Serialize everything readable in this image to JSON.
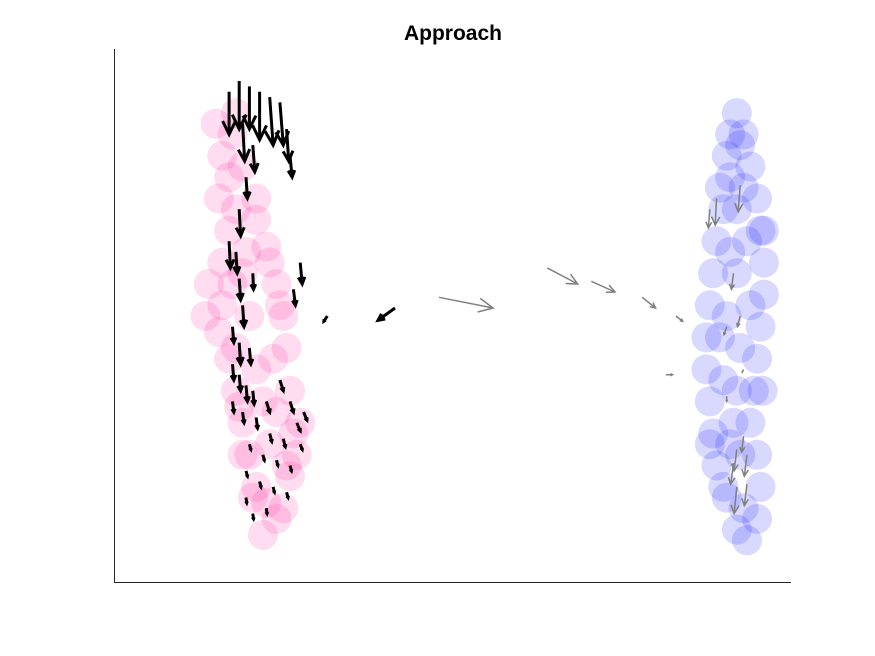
{
  "chart_data": {
    "type": "scatter",
    "title": "Approach",
    "xlabel": "",
    "ylabel": "",
    "xlim": [
      0,
      100
    ],
    "ylim": [
      0,
      100
    ],
    "xticks": [],
    "yticks": [],
    "grid": false,
    "legend": "none",
    "colors": {
      "pink": "#ff1493",
      "blue": "#0000ff",
      "black_arrow": "#000000",
      "gray_arrow": "#808080",
      "axis": "#262626"
    },
    "series": [
      {
        "name": "pink-cluster",
        "kind": "points",
        "color": "#ff1493",
        "opacity": 0.15,
        "points": [
          [
            15.0,
            86.0
          ],
          [
            16.0,
            80.0
          ],
          [
            15.5,
            72.0
          ],
          [
            17.0,
            66.0
          ],
          [
            16.0,
            60.0
          ],
          [
            16.0,
            52.0
          ],
          [
            15.5,
            47.0
          ],
          [
            17.0,
            42.0
          ],
          [
            18.0,
            36.0
          ],
          [
            19.0,
            30.0
          ],
          [
            20.0,
            24.0
          ],
          [
            21.0,
            18.0
          ],
          [
            22.5,
            15.0
          ],
          [
            24.0,
            12.0
          ],
          [
            22.0,
            9.0
          ],
          [
            20.5,
            16.0
          ],
          [
            19.0,
            24.0
          ],
          [
            18.5,
            33.0
          ],
          [
            18.0,
            44.0
          ],
          [
            17.5,
            56.0
          ],
          [
            19.5,
            62.0
          ],
          [
            21.0,
            68.0
          ],
          [
            22.5,
            63.0
          ],
          [
            24.0,
            56.0
          ],
          [
            25.0,
            50.0
          ],
          [
            25.5,
            44.0
          ],
          [
            26.0,
            36.0
          ],
          [
            26.5,
            28.0
          ],
          [
            26.0,
            20.0
          ],
          [
            25.0,
            14.0
          ],
          [
            23.0,
            26.0
          ],
          [
            22.0,
            34.0
          ],
          [
            21.0,
            40.0
          ],
          [
            20.0,
            50.0
          ],
          [
            19.0,
            58.0
          ],
          [
            18.0,
            70.0
          ],
          [
            17.0,
            76.0
          ],
          [
            19.0,
            78.0
          ],
          [
            21.0,
            72.0
          ],
          [
            23.0,
            60.0
          ],
          [
            24.5,
            52.0
          ],
          [
            23.5,
            42.0
          ],
          [
            24.0,
            32.0
          ],
          [
            25.5,
            22.0
          ],
          [
            27.0,
            24.0
          ],
          [
            27.5,
            30.0
          ],
          [
            14.0,
            56.0
          ],
          [
            13.5,
            50.0
          ],
          [
            17.5,
            84.0
          ],
          [
            18.0,
            88.0
          ]
        ]
      },
      {
        "name": "blue-cluster",
        "kind": "points",
        "color": "#0000ff",
        "opacity": 0.15,
        "points": [
          [
            92.5,
            82.0
          ],
          [
            91.0,
            76.0
          ],
          [
            90.0,
            70.0
          ],
          [
            89.0,
            64.0
          ],
          [
            88.5,
            58.0
          ],
          [
            88.0,
            52.0
          ],
          [
            87.5,
            46.0
          ],
          [
            87.5,
            40.0
          ],
          [
            88.0,
            34.0
          ],
          [
            88.5,
            28.0
          ],
          [
            89.0,
            22.0
          ],
          [
            90.5,
            16.0
          ],
          [
            92.0,
            10.0
          ],
          [
            93.5,
            8.0
          ],
          [
            95.0,
            12.0
          ],
          [
            95.5,
            18.0
          ],
          [
            95.0,
            24.0
          ],
          [
            94.0,
            30.0
          ],
          [
            94.5,
            36.0
          ],
          [
            95.0,
            42.0
          ],
          [
            95.5,
            48.0
          ],
          [
            96.0,
            54.0
          ],
          [
            96.0,
            60.0
          ],
          [
            95.5,
            66.0
          ],
          [
            95.0,
            72.0
          ],
          [
            94.0,
            78.0
          ],
          [
            93.0,
            84.0
          ],
          [
            92.0,
            88.0
          ],
          [
            90.5,
            80.0
          ],
          [
            89.5,
            74.0
          ],
          [
            92.0,
            70.0
          ],
          [
            93.5,
            64.0
          ],
          [
            92.0,
            58.0
          ],
          [
            90.5,
            50.0
          ],
          [
            92.5,
            44.0
          ],
          [
            90.0,
            38.0
          ],
          [
            91.5,
            30.0
          ],
          [
            92.5,
            24.0
          ],
          [
            90.0,
            18.0
          ],
          [
            93.0,
            14.0
          ],
          [
            94.0,
            52.0
          ],
          [
            89.5,
            46.0
          ],
          [
            91.0,
            62.0
          ],
          [
            93.0,
            74.0
          ],
          [
            91.0,
            84.0
          ],
          [
            95.8,
            36.0
          ],
          [
            88.0,
            26.0
          ],
          [
            96.0,
            66.0
          ],
          [
            92.0,
            36.0
          ],
          [
            91.0,
            26.0
          ]
        ]
      },
      {
        "name": "black-arrows",
        "kind": "arrows",
        "color": "#000000",
        "points": [
          [
            17.0,
            92.0,
            0.0,
            -8.0
          ],
          [
            18.5,
            94.0,
            0.0,
            -9.0
          ],
          [
            20.0,
            93.0,
            0.0,
            -8.0
          ],
          [
            21.5,
            92.0,
            0.0,
            -9.0
          ],
          [
            23.0,
            91.0,
            0.5,
            -9.0
          ],
          [
            24.5,
            90.0,
            0.5,
            -8.0
          ],
          [
            25.5,
            85.0,
            0.3,
            -6.0
          ],
          [
            26.0,
            80.0,
            0.3,
            -4.0
          ],
          [
            19.0,
            86.0,
            0.3,
            -7.0
          ],
          [
            20.5,
            82.0,
            0.3,
            -5.0
          ],
          [
            19.5,
            76.0,
            0.2,
            -4.0
          ],
          [
            18.5,
            70.0,
            0.2,
            -5.0
          ],
          [
            17.0,
            64.0,
            0.2,
            -5.0
          ],
          [
            18.0,
            62.0,
            0.2,
            -4.0
          ],
          [
            20.5,
            58.0,
            0.1,
            -3.0
          ],
          [
            27.5,
            60.0,
            0.3,
            -4.0
          ],
          [
            26.5,
            55.0,
            0.3,
            -3.0
          ],
          [
            18.5,
            57.0,
            0.2,
            -4.0
          ],
          [
            19.0,
            52.0,
            0.2,
            -4.0
          ],
          [
            17.5,
            48.0,
            0.2,
            -3.0
          ],
          [
            18.5,
            45.0,
            0.2,
            -4.0
          ],
          [
            20.0,
            44.0,
            0.2,
            -3.0
          ],
          [
            17.5,
            41.0,
            0.2,
            -3.0
          ],
          [
            18.5,
            39.0,
            0.2,
            -3.0
          ],
          [
            19.5,
            37.0,
            0.2,
            -3.0
          ],
          [
            20.5,
            36.0,
            0.2,
            -2.5
          ],
          [
            17.5,
            34.0,
            0.2,
            -2.0
          ],
          [
            19.0,
            32.0,
            0.2,
            -2.0
          ],
          [
            21.0,
            31.0,
            0.2,
            -2.0
          ],
          [
            22.5,
            34.0,
            0.5,
            -2.0
          ],
          [
            24.5,
            38.0,
            0.5,
            -2.0
          ],
          [
            26.0,
            34.0,
            0.5,
            -2.0
          ],
          [
            27.0,
            30.0,
            0.5,
            -1.5
          ],
          [
            28.0,
            32.0,
            0.5,
            -1.5
          ],
          [
            23.0,
            28.0,
            0.3,
            -1.5
          ],
          [
            25.0,
            27.0,
            0.3,
            -1.5
          ],
          [
            27.5,
            26.0,
            0.3,
            -1.0
          ],
          [
            20.0,
            26.0,
            0.2,
            -1.0
          ],
          [
            22.0,
            24.0,
            0.2,
            -1.0
          ],
          [
            24.0,
            23.0,
            0.2,
            -1.0
          ],
          [
            26.0,
            22.0,
            0.2,
            -1.0
          ],
          [
            19.5,
            21.0,
            0.2,
            -1.0
          ],
          [
            21.5,
            19.0,
            0.2,
            -1.0
          ],
          [
            23.5,
            18.0,
            0.2,
            -1.0
          ],
          [
            25.5,
            17.0,
            0.2,
            -1.0
          ],
          [
            19.5,
            16.0,
            0.1,
            -1.0
          ],
          [
            20.5,
            13.0,
            0.1,
            -1.0
          ],
          [
            22.5,
            14.0,
            0.1,
            -1.0
          ],
          [
            31.5,
            50.0,
            -0.5,
            -1.0
          ],
          [
            41.5,
            51.5,
            -2.5,
            -2.3
          ]
        ]
      },
      {
        "name": "gray-arrows",
        "kind": "arrows",
        "color": "#808080",
        "points": [
          [
            48.0,
            53.5,
            8.0,
            -2.0
          ],
          [
            64.0,
            59.0,
            4.5,
            -3.0
          ],
          [
            70.5,
            56.5,
            3.5,
            -2.0
          ],
          [
            78.0,
            53.5,
            2.0,
            -2.0
          ],
          [
            83.0,
            50.0,
            1.0,
            -1.0
          ],
          [
            81.5,
            39.0,
            1.0,
            0.0
          ],
          [
            88.0,
            70.0,
            -0.2,
            -3.5
          ],
          [
            89.0,
            72.0,
            -0.2,
            -5.0
          ],
          [
            92.5,
            74.5,
            -0.3,
            -5.0
          ],
          [
            91.5,
            58.0,
            -0.3,
            -3.0
          ],
          [
            92.5,
            50.0,
            -0.4,
            -2.0
          ],
          [
            90.5,
            48.0,
            -0.4,
            -1.5
          ],
          [
            93.0,
            40.0,
            -0.2,
            -0.5
          ],
          [
            90.5,
            35.0,
            0.0,
            -1.0
          ],
          [
            93.0,
            27.5,
            -0.3,
            -3.0
          ],
          [
            92.0,
            25.0,
            -0.4,
            -4.0
          ],
          [
            93.5,
            24.0,
            -0.4,
            -4.0
          ],
          [
            91.5,
            22.5,
            -0.4,
            -4.0
          ],
          [
            92.0,
            18.0,
            -0.4,
            -5.0
          ],
          [
            93.5,
            18.5,
            -0.4,
            -4.0
          ]
        ]
      }
    ]
  }
}
